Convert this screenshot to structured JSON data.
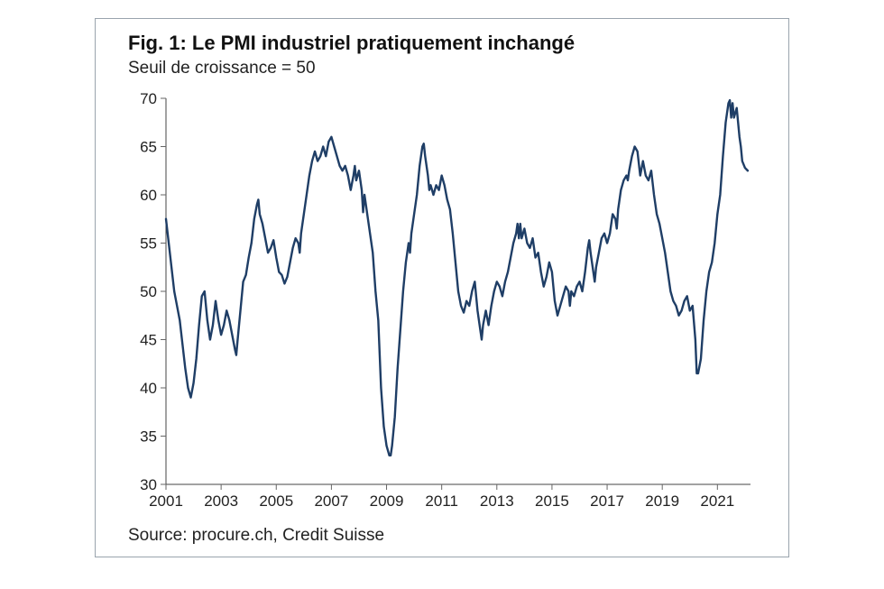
{
  "chart": {
    "type": "line",
    "title": "Fig. 1: Le PMI industriel pratiquement inchangé",
    "subtitle": "Seuil de croissance = 50",
    "source": "Source: procure.ch, Credit Suisse",
    "background_color": "#ffffff",
    "border_color": "#9aa4ad",
    "axis_color": "#444444",
    "tick_color": "#666666",
    "text_color": "#222222",
    "title_fontsize": 22,
    "subtitle_fontsize": 19,
    "axis_fontsize": 17,
    "line_color": "#1f3e66",
    "line_width": 2.4,
    "xlim": [
      2001,
      2022.2
    ],
    "ylim": [
      30,
      70
    ],
    "ytick_step": 5,
    "xtick_step": 2,
    "xticks": [
      2001,
      2003,
      2005,
      2007,
      2009,
      2011,
      2013,
      2015,
      2017,
      2019,
      2021
    ],
    "yticks": [
      30,
      35,
      40,
      45,
      50,
      55,
      60,
      65,
      70
    ],
    "series": [
      {
        "name": "PMI",
        "color": "#1f3e66",
        "width": 2.4,
        "data": [
          [
            2001.0,
            57.5
          ],
          [
            2001.1,
            55.0
          ],
          [
            2001.2,
            52.5
          ],
          [
            2001.3,
            50.0
          ],
          [
            2001.4,
            48.5
          ],
          [
            2001.5,
            47.0
          ],
          [
            2001.6,
            44.5
          ],
          [
            2001.7,
            42.0
          ],
          [
            2001.8,
            40.0
          ],
          [
            2001.9,
            39.0
          ],
          [
            2002.0,
            40.5
          ],
          [
            2002.1,
            43.0
          ],
          [
            2002.2,
            46.5
          ],
          [
            2002.3,
            49.5
          ],
          [
            2002.4,
            50.0
          ],
          [
            2002.5,
            47.0
          ],
          [
            2002.6,
            45.0
          ],
          [
            2002.7,
            46.5
          ],
          [
            2002.8,
            49.0
          ],
          [
            2002.9,
            47.0
          ],
          [
            2003.0,
            45.5
          ],
          [
            2003.1,
            46.5
          ],
          [
            2003.2,
            48.0
          ],
          [
            2003.3,
            47.0
          ],
          [
            2003.4,
            45.5
          ],
          [
            2003.5,
            44.0
          ],
          [
            2003.55,
            43.4
          ],
          [
            2003.6,
            45.0
          ],
          [
            2003.7,
            48.0
          ],
          [
            2003.8,
            51.0
          ],
          [
            2003.9,
            51.7
          ],
          [
            2004.0,
            53.5
          ],
          [
            2004.1,
            55.0
          ],
          [
            2004.2,
            57.5
          ],
          [
            2004.3,
            59.0
          ],
          [
            2004.35,
            59.5
          ],
          [
            2004.4,
            58.0
          ],
          [
            2004.5,
            57.0
          ],
          [
            2004.6,
            55.5
          ],
          [
            2004.7,
            54.0
          ],
          [
            2004.8,
            54.5
          ],
          [
            2004.9,
            55.3
          ],
          [
            2005.0,
            53.5
          ],
          [
            2005.1,
            52.0
          ],
          [
            2005.2,
            51.7
          ],
          [
            2005.3,
            50.8
          ],
          [
            2005.4,
            51.5
          ],
          [
            2005.5,
            53.0
          ],
          [
            2005.6,
            54.5
          ],
          [
            2005.7,
            55.5
          ],
          [
            2005.8,
            55.0
          ],
          [
            2005.85,
            54.0
          ],
          [
            2005.9,
            56.0
          ],
          [
            2006.0,
            58.0
          ],
          [
            2006.1,
            60.0
          ],
          [
            2006.2,
            62.0
          ],
          [
            2006.3,
            63.5
          ],
          [
            2006.4,
            64.5
          ],
          [
            2006.5,
            63.5
          ],
          [
            2006.6,
            64.0
          ],
          [
            2006.7,
            65.0
          ],
          [
            2006.8,
            64.0
          ],
          [
            2006.9,
            65.5
          ],
          [
            2007.0,
            66.0
          ],
          [
            2007.1,
            65.0
          ],
          [
            2007.2,
            64.0
          ],
          [
            2007.3,
            63.0
          ],
          [
            2007.4,
            62.5
          ],
          [
            2007.5,
            63.0
          ],
          [
            2007.6,
            62.0
          ],
          [
            2007.7,
            60.5
          ],
          [
            2007.8,
            62.0
          ],
          [
            2007.85,
            63.0
          ],
          [
            2007.9,
            61.5
          ],
          [
            2008.0,
            62.5
          ],
          [
            2008.1,
            60.5
          ],
          [
            2008.15,
            58.2
          ],
          [
            2008.2,
            60.0
          ],
          [
            2008.3,
            58.0
          ],
          [
            2008.4,
            56.0
          ],
          [
            2008.5,
            54.0
          ],
          [
            2008.6,
            50.0
          ],
          [
            2008.7,
            47.0
          ],
          [
            2008.8,
            40.0
          ],
          [
            2008.9,
            36.0
          ],
          [
            2009.0,
            34.0
          ],
          [
            2009.1,
            33.0
          ],
          [
            2009.15,
            33.0
          ],
          [
            2009.2,
            34.0
          ],
          [
            2009.3,
            37.0
          ],
          [
            2009.4,
            42.0
          ],
          [
            2009.5,
            46.0
          ],
          [
            2009.6,
            50.0
          ],
          [
            2009.7,
            53.0
          ],
          [
            2009.8,
            55.0
          ],
          [
            2009.85,
            54.0
          ],
          [
            2009.9,
            56.0
          ],
          [
            2010.0,
            58.0
          ],
          [
            2010.1,
            60.0
          ],
          [
            2010.2,
            63.0
          ],
          [
            2010.3,
            65.0
          ],
          [
            2010.35,
            65.3
          ],
          [
            2010.4,
            64.0
          ],
          [
            2010.5,
            62.0
          ],
          [
            2010.55,
            60.5
          ],
          [
            2010.6,
            61.0
          ],
          [
            2010.7,
            60.0
          ],
          [
            2010.8,
            61.0
          ],
          [
            2010.9,
            60.5
          ],
          [
            2011.0,
            62.0
          ],
          [
            2011.1,
            61.0
          ],
          [
            2011.2,
            59.5
          ],
          [
            2011.3,
            58.5
          ],
          [
            2011.4,
            56.0
          ],
          [
            2011.5,
            53.0
          ],
          [
            2011.6,
            50.0
          ],
          [
            2011.7,
            48.5
          ],
          [
            2011.8,
            47.8
          ],
          [
            2011.9,
            49.0
          ],
          [
            2012.0,
            48.5
          ],
          [
            2012.1,
            50.0
          ],
          [
            2012.2,
            51.0
          ],
          [
            2012.3,
            48.0
          ],
          [
            2012.4,
            46.0
          ],
          [
            2012.45,
            45.0
          ],
          [
            2012.5,
            46.5
          ],
          [
            2012.6,
            48.0
          ],
          [
            2012.7,
            46.5
          ],
          [
            2012.8,
            48.5
          ],
          [
            2012.9,
            50.0
          ],
          [
            2013.0,
            51.0
          ],
          [
            2013.1,
            50.5
          ],
          [
            2013.2,
            49.5
          ],
          [
            2013.3,
            51.0
          ],
          [
            2013.4,
            52.0
          ],
          [
            2013.5,
            53.5
          ],
          [
            2013.6,
            55.0
          ],
          [
            2013.7,
            56.0
          ],
          [
            2013.75,
            57.0
          ],
          [
            2013.8,
            55.5
          ],
          [
            2013.85,
            57.0
          ],
          [
            2013.9,
            55.5
          ],
          [
            2014.0,
            56.5
          ],
          [
            2014.1,
            55.0
          ],
          [
            2014.2,
            54.5
          ],
          [
            2014.3,
            55.5
          ],
          [
            2014.4,
            53.5
          ],
          [
            2014.5,
            54.0
          ],
          [
            2014.6,
            52.0
          ],
          [
            2014.7,
            50.5
          ],
          [
            2014.8,
            51.5
          ],
          [
            2014.9,
            53.0
          ],
          [
            2015.0,
            52.0
          ],
          [
            2015.1,
            49.0
          ],
          [
            2015.2,
            47.5
          ],
          [
            2015.3,
            48.5
          ],
          [
            2015.4,
            49.5
          ],
          [
            2015.5,
            50.5
          ],
          [
            2015.6,
            50.0
          ],
          [
            2015.65,
            48.5
          ],
          [
            2015.7,
            50.0
          ],
          [
            2015.8,
            49.5
          ],
          [
            2015.9,
            50.5
          ],
          [
            2016.0,
            51.0
          ],
          [
            2016.1,
            50.0
          ],
          [
            2016.2,
            52.0
          ],
          [
            2016.3,
            54.5
          ],
          [
            2016.35,
            55.3
          ],
          [
            2016.4,
            54.0
          ],
          [
            2016.5,
            52.0
          ],
          [
            2016.55,
            51.0
          ],
          [
            2016.6,
            52.5
          ],
          [
            2016.7,
            54.0
          ],
          [
            2016.8,
            55.5
          ],
          [
            2016.9,
            56.0
          ],
          [
            2017.0,
            55.0
          ],
          [
            2017.1,
            56.0
          ],
          [
            2017.2,
            58.0
          ],
          [
            2017.3,
            57.5
          ],
          [
            2017.35,
            56.5
          ],
          [
            2017.4,
            58.5
          ],
          [
            2017.5,
            60.5
          ],
          [
            2017.6,
            61.5
          ],
          [
            2017.7,
            62.0
          ],
          [
            2017.75,
            61.5
          ],
          [
            2017.8,
            62.5
          ],
          [
            2017.9,
            64.0
          ],
          [
            2018.0,
            65.0
          ],
          [
            2018.1,
            64.5
          ],
          [
            2018.2,
            62.0
          ],
          [
            2018.3,
            63.5
          ],
          [
            2018.4,
            62.0
          ],
          [
            2018.5,
            61.5
          ],
          [
            2018.6,
            62.5
          ],
          [
            2018.7,
            60.0
          ],
          [
            2018.8,
            58.0
          ],
          [
            2018.9,
            57.0
          ],
          [
            2019.0,
            55.5
          ],
          [
            2019.1,
            54.0
          ],
          [
            2019.2,
            52.0
          ],
          [
            2019.3,
            50.0
          ],
          [
            2019.4,
            49.0
          ],
          [
            2019.5,
            48.5
          ],
          [
            2019.6,
            47.5
          ],
          [
            2019.7,
            48.0
          ],
          [
            2019.8,
            49.0
          ],
          [
            2019.9,
            49.5
          ],
          [
            2020.0,
            48.0
          ],
          [
            2020.1,
            48.5
          ],
          [
            2020.2,
            45.0
          ],
          [
            2020.25,
            41.5
          ],
          [
            2020.3,
            41.5
          ],
          [
            2020.4,
            43.0
          ],
          [
            2020.5,
            47.0
          ],
          [
            2020.6,
            50.0
          ],
          [
            2020.7,
            52.0
          ],
          [
            2020.8,
            53.0
          ],
          [
            2020.9,
            55.0
          ],
          [
            2021.0,
            58.0
          ],
          [
            2021.1,
            60.0
          ],
          [
            2021.2,
            64.0
          ],
          [
            2021.3,
            67.5
          ],
          [
            2021.4,
            69.5
          ],
          [
            2021.45,
            69.8
          ],
          [
            2021.5,
            68.0
          ],
          [
            2021.55,
            69.5
          ],
          [
            2021.6,
            68.0
          ],
          [
            2021.7,
            69.0
          ],
          [
            2021.8,
            66.0
          ],
          [
            2021.85,
            65.0
          ],
          [
            2021.9,
            63.5
          ],
          [
            2022.0,
            62.8
          ],
          [
            2022.1,
            62.5
          ]
        ]
      }
    ]
  }
}
